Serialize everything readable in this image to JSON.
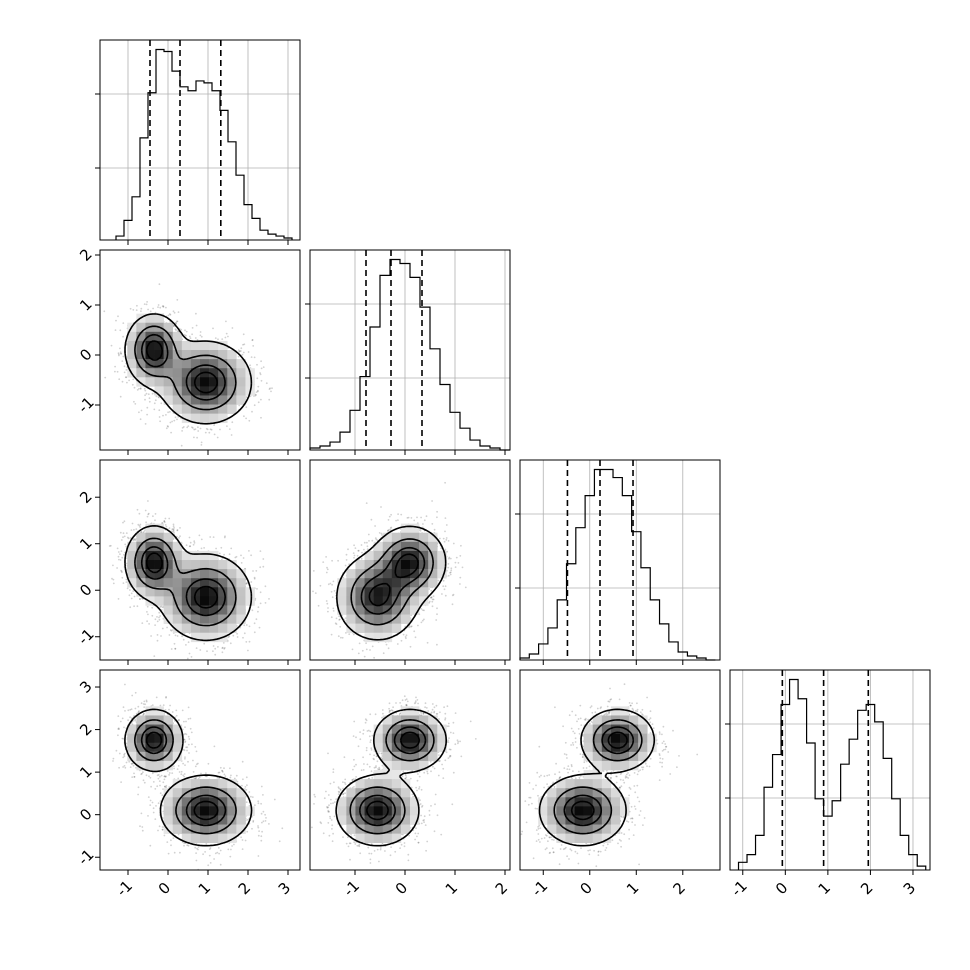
{
  "chart_data": {
    "type": "corner",
    "n_params": 4,
    "ranges": [
      [
        -1.7,
        3.3
      ],
      [
        -1.9,
        2.1
      ],
      [
        -1.5,
        2.8
      ],
      [
        -1.3,
        3.4
      ]
    ],
    "ticks": [
      [
        -1,
        0,
        1,
        2,
        3
      ],
      [
        -1,
        0,
        1,
        2
      ],
      [
        -1,
        0,
        1,
        2
      ],
      [
        -1,
        0,
        1,
        2,
        3
      ]
    ],
    "quantiles": [
      [
        -0.45,
        0.3,
        1.32
      ],
      [
        -0.78,
        -0.28,
        0.34
      ],
      [
        -0.48,
        0.22,
        0.93
      ],
      [
        -0.07,
        0.9,
        1.95
      ]
    ],
    "histograms": [
      {
        "bins": [
          -1.3,
          -1.1,
          -0.9,
          -0.7,
          -0.5,
          -0.3,
          -0.1,
          0.1,
          0.3,
          0.5,
          0.7,
          0.9,
          1.1,
          1.3,
          1.5,
          1.7,
          1.9,
          2.1,
          2.3,
          2.5,
          2.7,
          2.9
        ],
        "counts": [
          2,
          10,
          22,
          52,
          75,
          97,
          96,
          86,
          78,
          76,
          81,
          80,
          76,
          66,
          50,
          33,
          18,
          11,
          5,
          3,
          2,
          1
        ]
      },
      {
        "bins": [
          -1.9,
          -1.7,
          -1.5,
          -1.3,
          -1.1,
          -0.9,
          -0.7,
          -0.5,
          -0.3,
          -0.1,
          0.1,
          0.3,
          0.5,
          0.7,
          0.9,
          1.1,
          1.3,
          1.5,
          1.7,
          1.9
        ],
        "counts": [
          1,
          2,
          4,
          9,
          20,
          37,
          62,
          88,
          96,
          94,
          87,
          72,
          51,
          33,
          19,
          11,
          5,
          2,
          1,
          0
        ]
      },
      {
        "bins": [
          -1.5,
          -1.3,
          -1.1,
          -0.9,
          -0.7,
          -0.5,
          -0.3,
          -0.1,
          0.1,
          0.3,
          0.5,
          0.7,
          0.9,
          1.1,
          1.3,
          1.5,
          1.7,
          1.9,
          2.1,
          2.3,
          2.5
        ],
        "counts": [
          1,
          3,
          8,
          16,
          30,
          48,
          66,
          82,
          95,
          95,
          91,
          82,
          64,
          46,
          30,
          18,
          9,
          4,
          2,
          1,
          0
        ]
      },
      {
        "bins": [
          -1.1,
          -0.9,
          -0.7,
          -0.5,
          -0.3,
          -0.1,
          0.1,
          0.3,
          0.5,
          0.7,
          0.9,
          1.1,
          1.3,
          1.5,
          1.7,
          1.9,
          2.1,
          2.3,
          2.5,
          2.7,
          2.9,
          3.1
        ],
        "counts": [
          4,
          8,
          18,
          43,
          60,
          86,
          99,
          89,
          66,
          37,
          28,
          36,
          55,
          68,
          83,
          86,
          77,
          58,
          37,
          18,
          8,
          2
        ]
      }
    ],
    "mixture_modes": [
      {
        "mean": [
          -0.35,
          0.1,
          0.6,
          1.75
        ],
        "sd": [
          0.35,
          0.35,
          0.38,
          0.35
        ]
      },
      {
        "mean": [
          0.95,
          -0.55,
          -0.15,
          0.1
        ],
        "sd": [
          0.55,
          0.4,
          0.45,
          0.4
        ]
      }
    ],
    "contour_levels": [
      0.118,
      0.393,
      0.675,
      0.865
    ],
    "grid": true
  }
}
